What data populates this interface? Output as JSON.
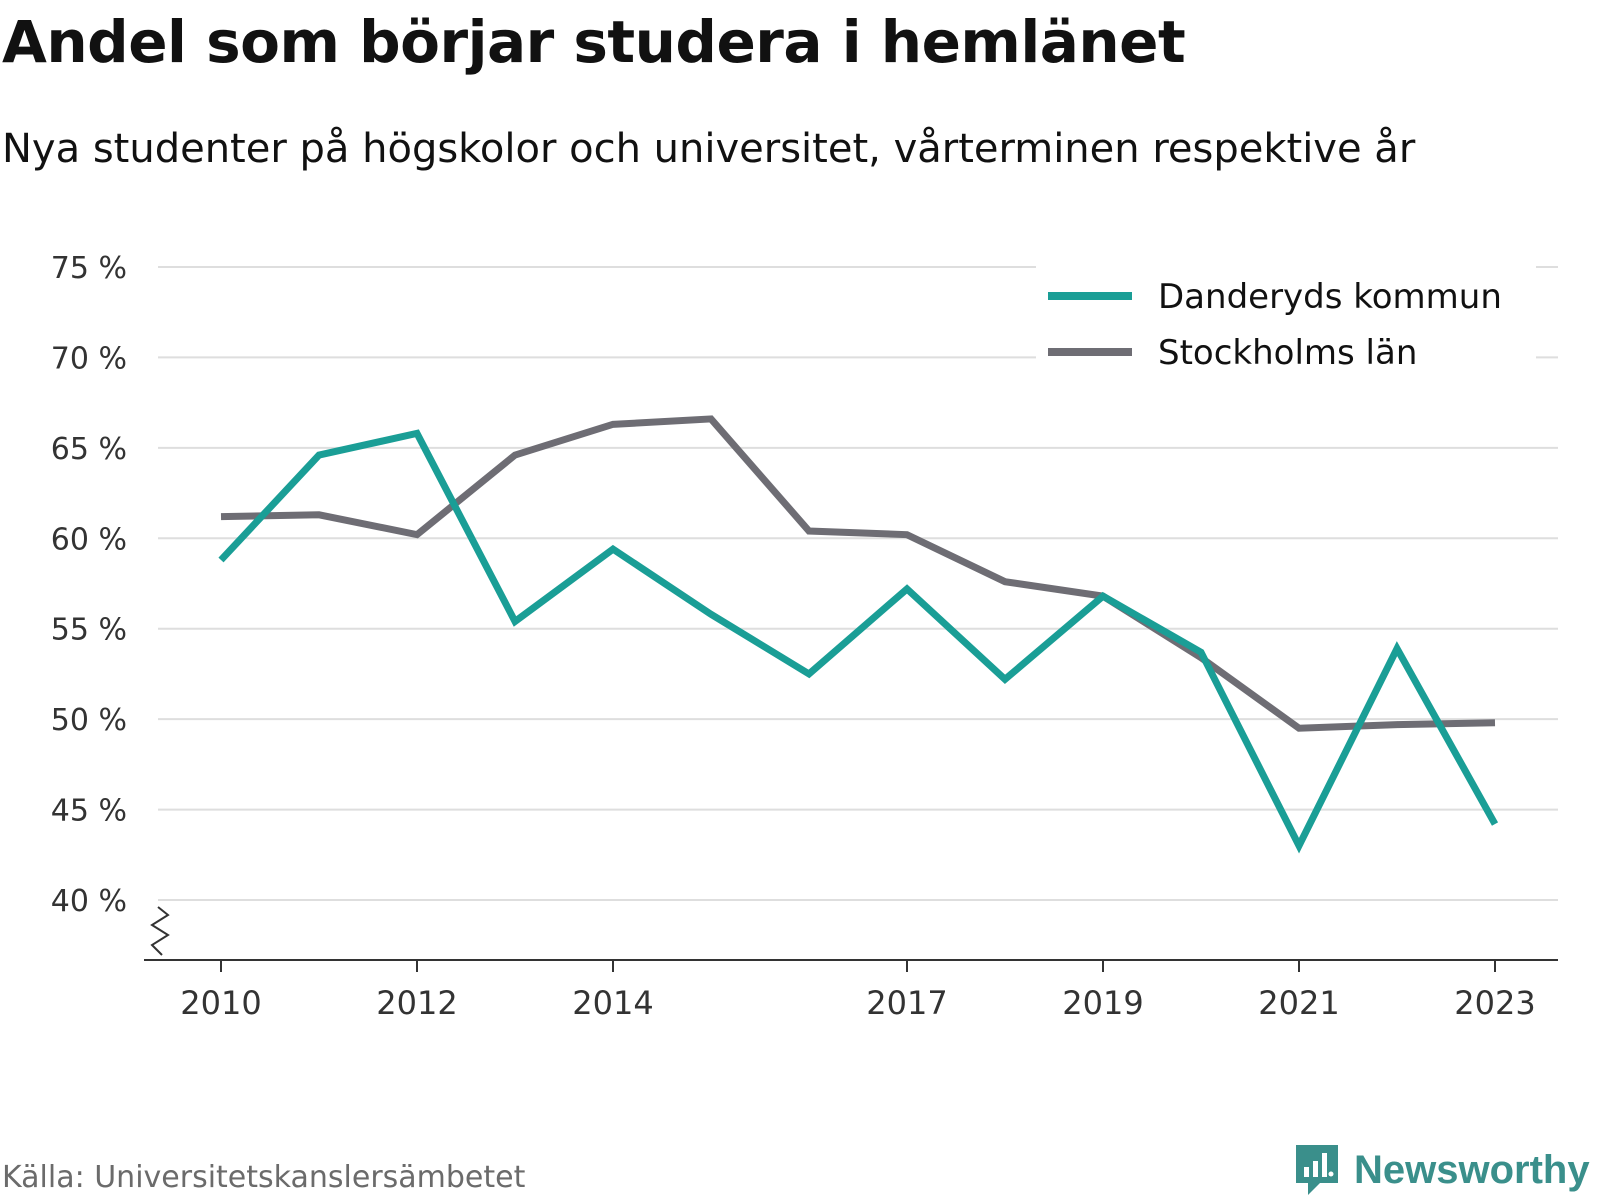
{
  "title": "Andel som börjar studera i hemlänet",
  "subtitle": "Nya studenter på högskolor och universitet, vårterminen respektive år",
  "source": "Källa: Universitetskanslersämbetet",
  "brand": {
    "name": "Newsworthy",
    "icon": "newsworthy-logo-icon",
    "color": "#3a8f8b"
  },
  "chart_data": {
    "type": "line",
    "x": [
      2010,
      2011,
      2012,
      2013,
      2014,
      2015,
      2016,
      2017,
      2018,
      2019,
      2020,
      2021,
      2022,
      2023
    ],
    "x_tick_labels": [
      "2010",
      "2012",
      "2014",
      "2017",
      "2019",
      "2021",
      "2023"
    ],
    "y_tick_labels": [
      "75 %",
      "70 %",
      "65 %",
      "60 %",
      "55 %",
      "50 %",
      "45 %",
      "40 %"
    ],
    "ylim": [
      40,
      75
    ],
    "y_axis_break": true,
    "grid": true,
    "legend_position": "top-right",
    "series": [
      {
        "name": "Danderyds kommun",
        "color": "#1a9e96",
        "values": [
          58.8,
          64.6,
          65.8,
          55.4,
          59.4,
          55.8,
          52.5,
          57.2,
          52.2,
          56.8,
          53.7,
          43.0,
          53.9,
          44.2
        ]
      },
      {
        "name": "Stockholms län",
        "color": "#6e6d74",
        "values": [
          61.2,
          61.3,
          60.2,
          64.6,
          66.3,
          66.6,
          60.4,
          60.2,
          57.6,
          56.8,
          53.4,
          49.5,
          49.7,
          49.8
        ]
      }
    ]
  }
}
